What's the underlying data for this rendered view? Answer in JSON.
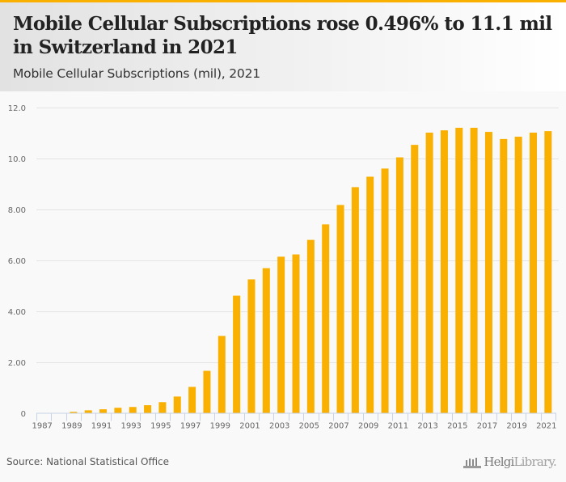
{
  "header": {
    "title": "Mobile Cellular Subscriptions rose 0.496% to 11.1 mil in Switzerland in 2021",
    "subtitle": "Mobile Cellular Subscriptions (mil), 2021"
  },
  "footer": {
    "source": "Source: National Statistical Office",
    "logo_brand": "Helgi",
    "logo_suffix": "Library."
  },
  "colors": {
    "accent": "#f9b000",
    "bar": "#f9b000",
    "grid": "#e3e3e3",
    "axis": "#c8d2e6"
  },
  "chart_data": {
    "type": "bar",
    "title": "Mobile Cellular Subscriptions (mil), 2021",
    "xlabel": "",
    "ylabel": "",
    "ylim": [
      0,
      12
    ],
    "yticks": [
      0,
      2,
      4,
      6,
      8,
      10,
      12
    ],
    "ytick_labels": [
      "0",
      "2.00",
      "4.00",
      "6.00",
      "8.00",
      "10.0",
      "12.0"
    ],
    "grid": true,
    "legend": "none",
    "categories": [
      "1987",
      "1988",
      "1989",
      "1990",
      "1991",
      "1992",
      "1993",
      "1994",
      "1995",
      "1996",
      "1997",
      "1998",
      "1999",
      "2000",
      "2001",
      "2002",
      "2003",
      "2004",
      "2005",
      "2006",
      "2007",
      "2008",
      "2009",
      "2010",
      "2011",
      "2012",
      "2013",
      "2014",
      "2015",
      "2016",
      "2017",
      "2018",
      "2019",
      "2020",
      "2021"
    ],
    "xtick_labels": [
      "1987",
      "1989",
      "1991",
      "1993",
      "1995",
      "1997",
      "1999",
      "2001",
      "2003",
      "2005",
      "2007",
      "2009",
      "2011",
      "2013",
      "2015",
      "2017",
      "2019",
      "2021"
    ],
    "series": [
      {
        "name": "Mobile Cellular Subscriptions (mil)",
        "values": [
          0,
          0,
          0.04,
          0.1,
          0.14,
          0.2,
          0.23,
          0.3,
          0.42,
          0.64,
          1.02,
          1.65,
          3.02,
          4.6,
          5.24,
          5.68,
          6.13,
          6.22,
          6.79,
          7.4,
          8.16,
          8.86,
          9.27,
          9.59,
          10.03,
          10.52,
          11.0,
          11.09,
          11.19,
          11.19,
          11.03,
          10.75,
          10.84,
          11.0,
          11.06
        ]
      }
    ]
  }
}
